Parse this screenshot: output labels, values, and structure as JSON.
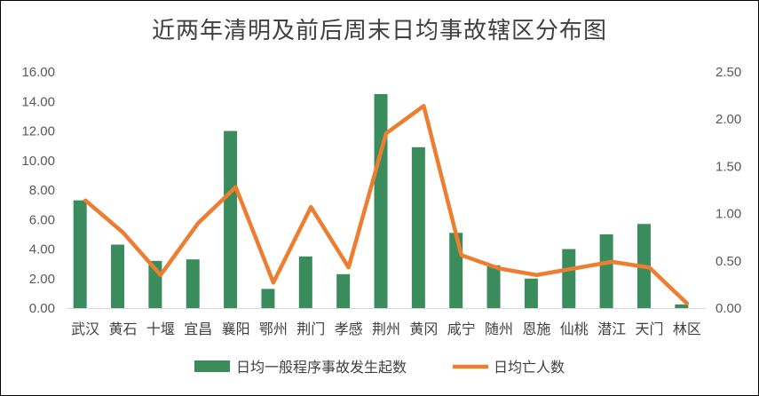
{
  "chart_data": {
    "type": "bar",
    "title": "近两年清明及前后周末日均事故辖区分布图",
    "categories": [
      "武汉",
      "黄石",
      "十堰",
      "宜昌",
      "襄阳",
      "鄂州",
      "荆门",
      "孝感",
      "荆州",
      "黄冈",
      "咸宁",
      "随州",
      "恩施",
      "仙桃",
      "潜江",
      "天门",
      "林区"
    ],
    "series": [
      {
        "name": "日均一般程序事故发生起数",
        "type": "bar",
        "axis": "left",
        "color": "#3A8C5C",
        "values": [
          7.3,
          4.3,
          3.2,
          3.3,
          12.0,
          1.3,
          3.5,
          2.3,
          14.5,
          10.9,
          5.1,
          2.9,
          2.0,
          4.0,
          5.0,
          5.7,
          0.25
        ]
      },
      {
        "name": "日均亡人数",
        "type": "line",
        "axis": "right",
        "color": "#ED7D31",
        "values": [
          1.14,
          0.8,
          0.35,
          0.9,
          1.28,
          0.27,
          1.07,
          0.43,
          1.85,
          2.14,
          0.56,
          0.42,
          0.35,
          0.42,
          0.49,
          0.43,
          0.05
        ]
      }
    ],
    "ylim_left": [
      0,
      16
    ],
    "yticks_left": [
      "0.00",
      "2.00",
      "4.00",
      "6.00",
      "8.00",
      "10.00",
      "12.00",
      "14.00",
      "16.00"
    ],
    "ylim_right": [
      0,
      2.5
    ],
    "yticks_right": [
      "0.00",
      "0.50",
      "1.00",
      "1.50",
      "2.00",
      "2.50"
    ],
    "grid": false,
    "legend_position": "bottom"
  }
}
